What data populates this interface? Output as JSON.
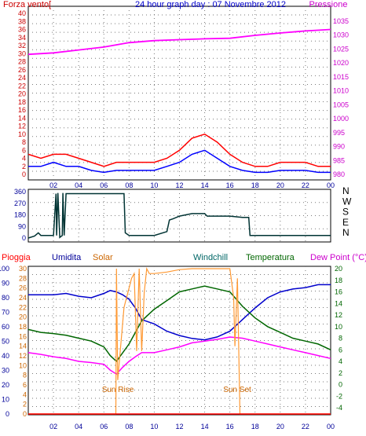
{
  "chart_data": [
    {
      "type": "line",
      "title": "24 hour graph day : 07 Novembre 2012",
      "left_axis_label": "Forza vento[",
      "right_axis_label": "Pressione",
      "x_ticks": [
        "02",
        "04",
        "06",
        "08",
        "10",
        "12",
        "14",
        "16",
        "18",
        "20",
        "22",
        "00"
      ],
      "left_ticks": [
        "40",
        "38",
        "36",
        "34",
        "32",
        "30",
        "28",
        "26",
        "24",
        "22",
        "20",
        "18",
        "16",
        "14",
        "12",
        "10",
        "8",
        "6",
        "4",
        "2",
        "0"
      ],
      "right_ticks": [
        "1035",
        "1030",
        "1025",
        "1020",
        "1015",
        "1010",
        "1005",
        "1000",
        "995",
        "990",
        "985",
        "980"
      ],
      "ylim_left": [
        0,
        40
      ],
      "ylim_right": [
        980,
        1035
      ],
      "grid": true,
      "series": [
        {
          "color": "#ff00ff",
          "axis": "right",
          "x": [
            0,
            2,
            4,
            6,
            8,
            10,
            12,
            14,
            16,
            18,
            20,
            22,
            24
          ],
          "values": [
            1021,
            1021.5,
            1022.5,
            1023.5,
            1025,
            1025.7,
            1026,
            1026.3,
            1026.5,
            1027.5,
            1028.3,
            1029,
            1029.5
          ]
        },
        {
          "color": "#ff0000",
          "axis": "left",
          "x": [
            0,
            1,
            2,
            3,
            4,
            5,
            6,
            7,
            8,
            9,
            10,
            11,
            12,
            13,
            14,
            15,
            16,
            17,
            18,
            19,
            20,
            21,
            22,
            23,
            24
          ],
          "values": [
            5,
            4,
            5,
            5,
            4,
            3,
            2,
            3,
            3,
            3,
            3,
            4,
            6,
            9,
            10,
            8,
            5,
            3,
            2,
            2,
            3,
            3,
            3,
            2,
            2
          ]
        },
        {
          "color": "#0000ff",
          "axis": "left",
          "x": [
            0,
            1,
            2,
            3,
            4,
            5,
            6,
            7,
            8,
            9,
            10,
            11,
            12,
            13,
            14,
            15,
            16,
            17,
            18,
            19,
            20,
            21,
            22,
            23,
            24
          ],
          "values": [
            2,
            2,
            3,
            2,
            2,
            1,
            0.5,
            1,
            1,
            1,
            1,
            2,
            3,
            5,
            6,
            4,
            2,
            1,
            0.5,
            0.5,
            1,
            1,
            1,
            0.5,
            0.5
          ]
        }
      ]
    },
    {
      "type": "line",
      "y_ticks": [
        "360",
        "270",
        "180",
        "90",
        "0"
      ],
      "right_labels": [
        "N",
        "W",
        "S",
        "E",
        "N"
      ],
      "x_ticks": [
        "02",
        "04",
        "06",
        "08",
        "10",
        "12",
        "14",
        "16",
        "18",
        "20",
        "22",
        "00"
      ],
      "ylim": [
        0,
        360
      ],
      "grid": true,
      "series": [
        {
          "color": "#003333",
          "x": [
            0,
            0.5,
            0.8,
            1,
            1.5,
            1.9,
            2.0,
            2.2,
            2.25,
            2.35,
            2.5,
            2.7,
            2.75,
            2.85,
            3,
            3.2,
            3.6,
            4,
            6,
            7.6,
            7.7,
            8,
            9,
            10,
            11,
            11.2,
            11.5,
            12,
            13,
            14,
            14.2,
            14.5,
            16,
            17,
            17.5,
            17.6,
            18,
            20,
            22,
            24
          ],
          "values": [
            0,
            15,
            40,
            20,
            20,
            20,
            20,
            345,
            20,
            350,
            5,
            20,
            350,
            20,
            345,
            345,
            345,
            345,
            345,
            345,
            40,
            20,
            20,
            20,
            50,
            140,
            150,
            170,
            190,
            190,
            170,
            170,
            170,
            160,
            160,
            20,
            20,
            20,
            20,
            20
          ]
        }
      ]
    },
    {
      "type": "line",
      "legend": [
        "Pioggia",
        "Umidita",
        "Solar",
        "Windchill",
        "Temperatura",
        "Dew Point (°C)"
      ],
      "annotations": [
        "Sun Rise",
        "Sun Set"
      ],
      "x_ticks": [
        "02",
        "04",
        "06",
        "08",
        "10",
        "12",
        "14",
        "16",
        "18",
        "20",
        "22",
        "00"
      ],
      "left_ticks": [
        "100",
        "90",
        "80",
        "70",
        "60",
        "50",
        "40",
        "30",
        "20",
        "10",
        "0"
      ],
      "solar_ticks": [
        "30",
        "28",
        "26",
        "24",
        "22",
        "20",
        "18",
        "16",
        "14",
        "12",
        "10",
        "8",
        "6",
        "4",
        "2",
        "0"
      ],
      "right_ticks": [
        "20",
        "18",
        "16",
        "14",
        "12",
        "10",
        "8",
        "6",
        "4",
        "2",
        "0",
        "-2",
        "-4"
      ],
      "ylim_left": [
        0,
        100
      ],
      "ylim_right": [
        -6,
        20
      ],
      "grid": true,
      "series": [
        {
          "name": "Umidita",
          "color": "#0000cc",
          "axis": "left",
          "x": [
            0,
            2,
            3,
            4,
            5,
            6,
            6.5,
            7,
            7.5,
            8,
            8.5,
            9,
            10,
            11,
            12,
            13,
            14,
            15,
            16,
            17,
            18,
            19,
            20,
            21,
            22,
            23,
            24
          ],
          "values": [
            82,
            82,
            83,
            81,
            80,
            83,
            85,
            84,
            82,
            79,
            73,
            65,
            62,
            57,
            54,
            52,
            51,
            53,
            57,
            65,
            73,
            80,
            84,
            86,
            87,
            89,
            89
          ]
        },
        {
          "name": "Temperatura",
          "color": "#006600",
          "axis": "right",
          "x": [
            0,
            1,
            2,
            3,
            4,
            5,
            6,
            6.5,
            7,
            7.5,
            8,
            8.5,
            9,
            10,
            11,
            12,
            13,
            14,
            15,
            16,
            17,
            18,
            19,
            20,
            21,
            22,
            23,
            24
          ],
          "values": [
            9.5,
            9,
            8.8,
            8.5,
            8,
            7.5,
            6.5,
            5,
            4,
            5.5,
            7,
            9,
            11,
            13,
            14.5,
            16,
            16.5,
            17,
            16.5,
            16,
            13.5,
            11.5,
            10,
            9,
            8,
            7.5,
            7,
            6
          ]
        },
        {
          "name": "Dew Point (°C)",
          "color": "#ff00ff",
          "axis": "right",
          "x": [
            0,
            1,
            2,
            3,
            4,
            5,
            6,
            6.5,
            7,
            7.5,
            8,
            8.5,
            9,
            10,
            11,
            12,
            13,
            14,
            15,
            16,
            17,
            18,
            19,
            20,
            21,
            22,
            23,
            24
          ],
          "values": [
            5.5,
            5.2,
            4.8,
            4.5,
            4,
            3.8,
            3.5,
            2.5,
            1.8,
            3,
            4,
            4.8,
            5.5,
            5.5,
            6,
            6.5,
            7.2,
            7.5,
            7.8,
            8.2,
            8,
            7.5,
            7,
            6.5,
            6,
            5.5,
            5,
            4.5
          ]
        },
        {
          "name": "Solar",
          "color": "#ff9933",
          "axis": "solar",
          "x": [
            0,
            6.5,
            6.95,
            7.0,
            7.1,
            7.6,
            8.2,
            8.4,
            8.6,
            8.8,
            9.0,
            9.2,
            9.4,
            9.6,
            10,
            11,
            12,
            13,
            14,
            15,
            16,
            16.3,
            16.4,
            16.6,
            16.8,
            24
          ],
          "values": [
            0,
            0,
            0,
            30,
            7,
            22,
            28,
            29,
            13,
            30,
            13,
            25,
            30,
            29,
            29,
            29.3,
            29.8,
            30,
            30,
            30,
            30,
            24,
            14,
            28,
            0,
            0
          ]
        },
        {
          "name": "Pioggia",
          "color": "#ff0000",
          "axis": "left",
          "x": [
            0,
            24
          ],
          "values": [
            0,
            0
          ]
        }
      ],
      "sun_rise_x": 6.95,
      "sun_set_x": 16.8
    }
  ]
}
